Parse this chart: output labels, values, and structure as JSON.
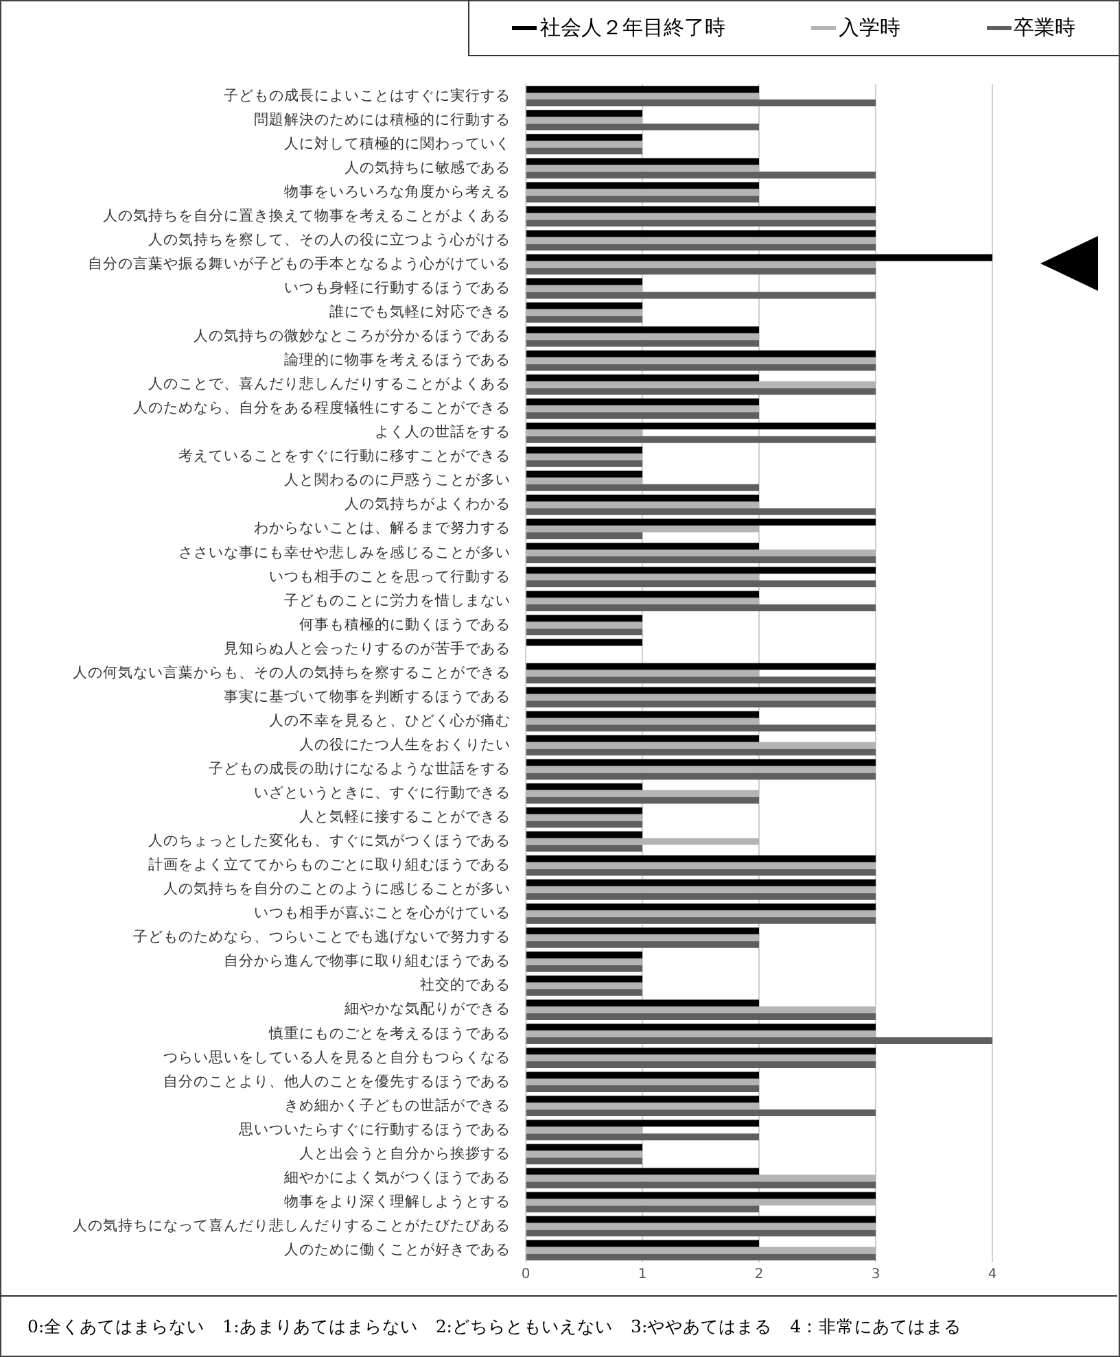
{
  "chart_data": {
    "type": "bar",
    "orientation": "horizontal",
    "categories": [
      "子どもの成長によいことはすぐに実行する",
      "問題解決のためには積極的に行動する",
      "人に対して積極的に関わっていく",
      "人の気持ちに敏感である",
      "物事をいろいろな角度から考える",
      "人の気持ちを自分に置き換えて物事を考えることがよくある",
      "人の気持ちを察して、その人の役に立つよう心がける",
      "自分の言葉や振る舞いが子どもの手本となるよう心がけている",
      "いつも身軽に行動するほうである",
      "誰にでも気軽に対応できる",
      "人の気持ちの微妙なところが分かるほうである",
      "論理的に物事を考えるほうである",
      "人のことで、喜んだり悲しんだりすることがよくある",
      "人のためなら、自分をある程度犠牲にすることができる",
      "よく人の世話をする",
      "考えていることをすぐに行動に移すことができる",
      "人と関わるのに戸惑うことが多い",
      "人の気持ちがよくわかる",
      "わからないことは、解るまで努力する",
      "ささいな事にも幸せや悲しみを感じることが多い",
      "いつも相手のことを思って行動する",
      "子どものことに労力を惜しまない",
      "何事も積極的に動くほうである",
      "見知らぬ人と会ったりするのが苦手である",
      "人の何気ない言葉からも、その人の気持ちを察することができる",
      "事実に基づいて物事を判断するほうである",
      "人の不幸を見ると、ひどく心が痛む",
      "人の役にたつ人生をおくりたい",
      "子どもの成長の助けになるような世話をする",
      "いざというときに、すぐに行動できる",
      "人と気軽に接することができる",
      "人のちょっとした変化も、すぐに気がつくほうである",
      "計画をよく立ててからものごとに取り組むほうである",
      "人の気持ちを自分のことのように感じることが多い",
      "いつも相手が喜ぶことを心がけている",
      "子どものためなら、つらいことでも逃げないで努力する",
      "自分から進んで物事に取り組むほうである",
      "社交的である",
      "細やかな気配りができる",
      "慎重にものごとを考えるほうである",
      "つらい思いをしている人を見ると自分もつらくなる",
      "自分のことより、他人のことを優先するほうである",
      "きめ細かく子どもの世話ができる",
      "思いついたらすぐに行動するほうである",
      "人と出会うと自分から挨拶する",
      "細やかによく気がつくほうである",
      "物事をより深く理解しようとする",
      "人の気持ちになって喜んだり悲しんだりすることがたびたびある",
      "人のために働くことが好きである"
    ],
    "series": [
      {
        "name": "社会人２年目終了時",
        "color": "#000000",
        "values": [
          2,
          1,
          1,
          2,
          2,
          3,
          3,
          4,
          1,
          1,
          2,
          3,
          2,
          2,
          3,
          1,
          1,
          2,
          3,
          2,
          3,
          2,
          1,
          1,
          3,
          3,
          2,
          2,
          3,
          1,
          1,
          1,
          3,
          3,
          3,
          2,
          1,
          1,
          2,
          3,
          3,
          2,
          2,
          2,
          1,
          2,
          3,
          3,
          2
        ]
      },
      {
        "name": "入学時",
        "color": "#b4b4b4",
        "values": [
          2,
          1,
          1,
          2,
          2,
          3,
          3,
          3,
          1,
          1,
          2,
          3,
          3,
          2,
          1,
          1,
          1,
          2,
          2,
          3,
          2,
          2,
          1,
          0,
          2,
          3,
          2,
          3,
          3,
          2,
          1,
          2,
          3,
          3,
          3,
          2,
          1,
          1,
          3,
          3,
          3,
          2,
          2,
          1,
          1,
          3,
          3,
          3,
          3
        ]
      },
      {
        "name": "卒業時",
        "color": "#5f5f5f",
        "values": [
          3,
          2,
          1,
          3,
          2,
          3,
          3,
          3,
          3,
          1,
          2,
          3,
          3,
          2,
          3,
          1,
          2,
          3,
          1,
          3,
          3,
          3,
          1,
          0,
          3,
          3,
          3,
          3,
          3,
          2,
          1,
          1,
          3,
          3,
          3,
          2,
          1,
          1,
          3,
          4,
          3,
          2,
          3,
          2,
          1,
          3,
          2,
          3,
          3
        ]
      }
    ],
    "xlim": [
      0,
      4
    ],
    "xticks": [
      0,
      1,
      2,
      3,
      4
    ],
    "grid": "x",
    "legend": "top right",
    "annotations": [
      "0:全くあてはまらない　1:あまりあてはまらない　2:どちらともいえない　3:ややあてはまる　4：非常にあてはまる"
    ]
  }
}
